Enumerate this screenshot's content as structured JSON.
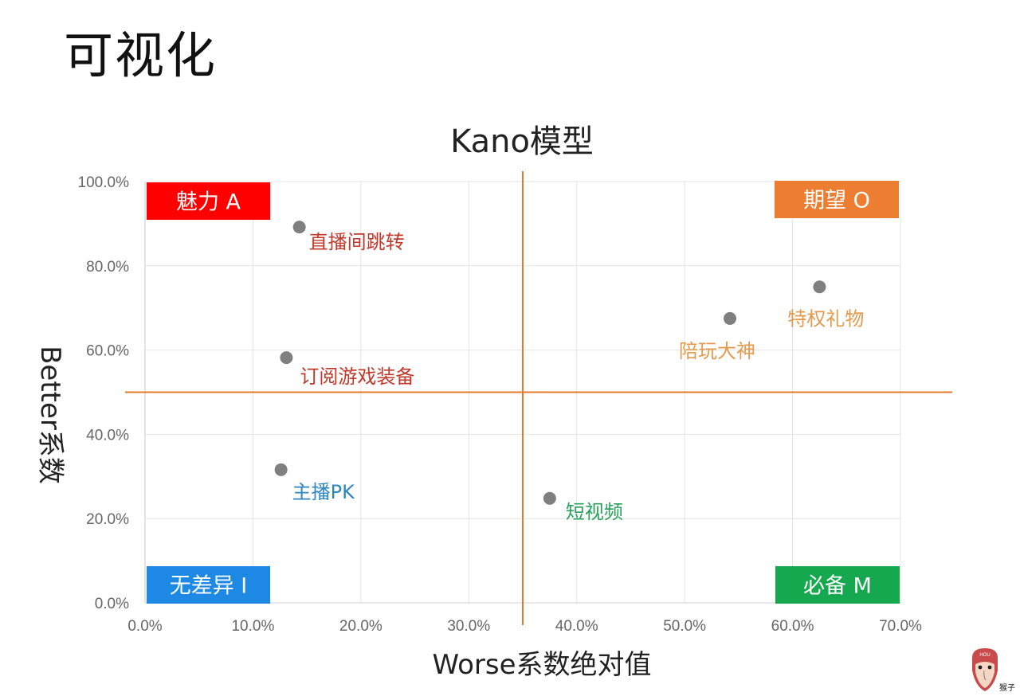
{
  "page": {
    "title": "可视化"
  },
  "chart_data": {
    "type": "scatter",
    "title": "Kano模型",
    "xlabel": "Worse系数绝对值",
    "ylabel": "Better系数",
    "xlim": [
      0,
      70
    ],
    "ylim": [
      0,
      100
    ],
    "x_ticks": [
      "0.0%",
      "10.0%",
      "20.0%",
      "30.0%",
      "40.0%",
      "50.0%",
      "60.0%",
      "70.0%"
    ],
    "y_ticks": [
      "0.0%",
      "20.0%",
      "40.0%",
      "60.0%",
      "80.0%",
      "100.0%"
    ],
    "grid": true,
    "reference_lines": {
      "vertical_x": 35,
      "horizontal_y": 50,
      "color": "#e07b2c"
    },
    "quadrants": [
      {
        "id": "A",
        "label": "魅力 A",
        "position": "top-left",
        "color": "#ff0000"
      },
      {
        "id": "O",
        "label": "期望 O",
        "position": "top-right",
        "color": "#ed7d31"
      },
      {
        "id": "I",
        "label": "无差异 I",
        "position": "bottom-left",
        "color": "#1e88e5"
      },
      {
        "id": "M",
        "label": "必备 M",
        "position": "bottom-right",
        "color": "#16a84f"
      }
    ],
    "points": [
      {
        "label": "直播间跳转",
        "x": 14.3,
        "y": 89.2,
        "quadrant": "A",
        "label_color": "#c0392b"
      },
      {
        "label": "订阅游戏装备",
        "x": 13.1,
        "y": 58.2,
        "quadrant": "A",
        "label_color": "#c0392b"
      },
      {
        "label": "主播PK",
        "x": 12.6,
        "y": 31.6,
        "quadrant": "I",
        "label_color": "#2e86c1"
      },
      {
        "label": "短视频",
        "x": 37.5,
        "y": 24.8,
        "quadrant": "M",
        "label_color": "#27a05a"
      },
      {
        "label": "陪玩大神",
        "x": 54.2,
        "y": 67.5,
        "quadrant": "O",
        "label_color": "#e39a4d"
      },
      {
        "label": "特权礼物",
        "x": 62.5,
        "y": 75.0,
        "quadrant": "O",
        "label_color": "#e39a4d"
      }
    ],
    "point_color": "#7f7f7f"
  },
  "watermark": {
    "text": "猴子",
    "badge": "HOU"
  }
}
